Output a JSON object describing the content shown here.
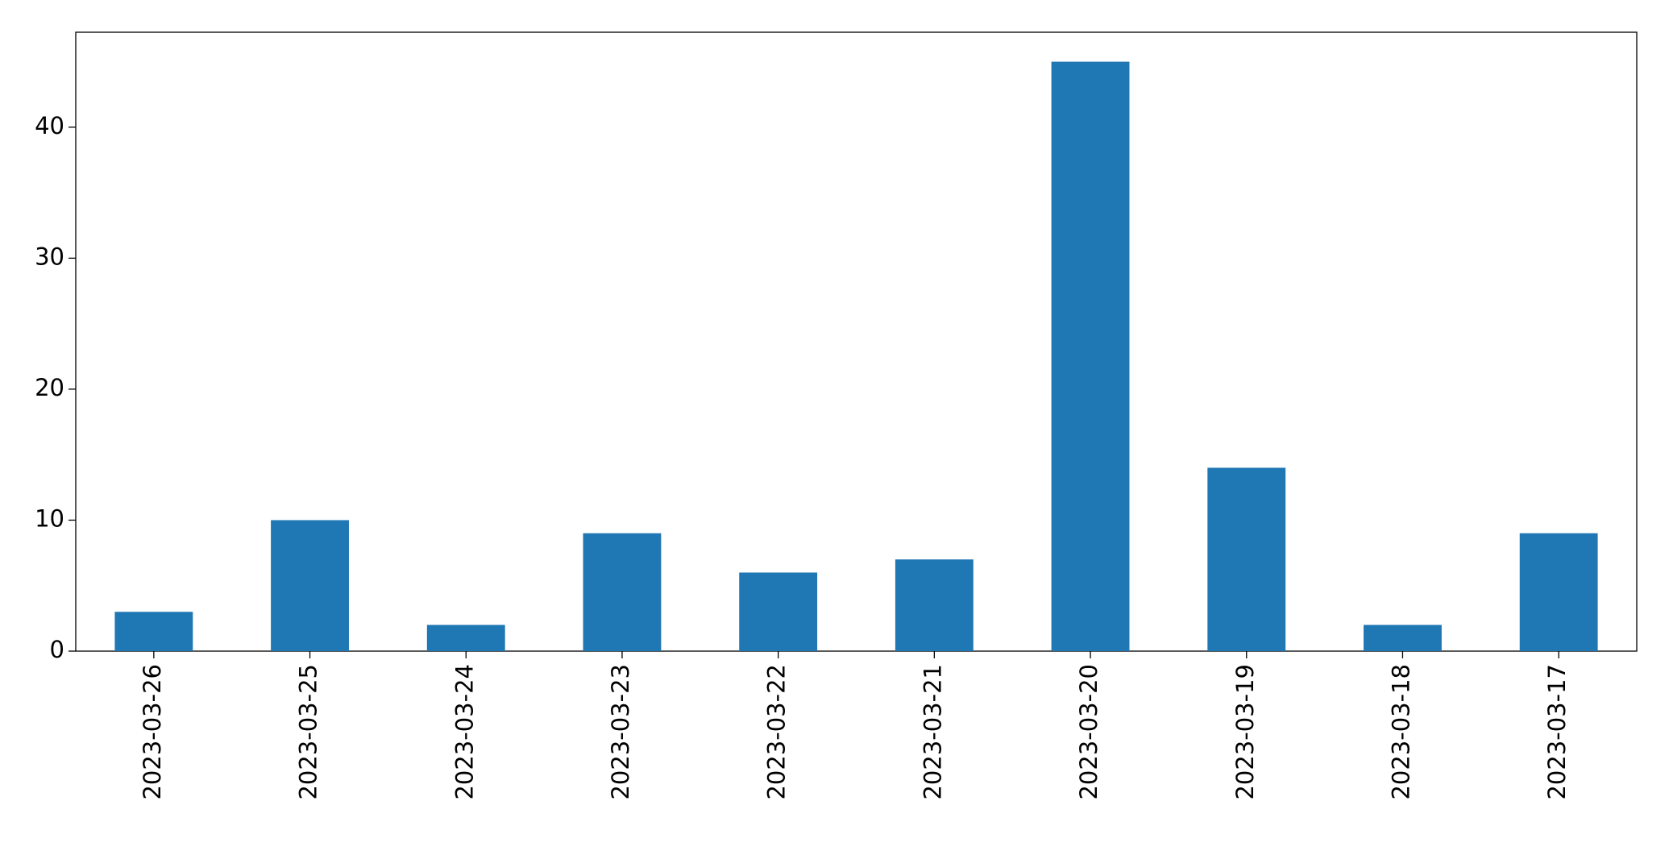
{
  "chart_data": {
    "type": "bar",
    "categories": [
      "2023-03-26",
      "2023-03-25",
      "2023-03-24",
      "2023-03-23",
      "2023-03-22",
      "2023-03-21",
      "2023-03-20",
      "2023-03-19",
      "2023-03-18",
      "2023-03-17"
    ],
    "values": [
      3,
      10,
      2,
      9,
      6,
      7,
      45,
      14,
      2,
      9
    ],
    "color": "#1f77b4",
    "ylim": [
      0,
      47.25
    ],
    "yticks": [
      0,
      10,
      20,
      30,
      40
    ],
    "grid": false
  }
}
